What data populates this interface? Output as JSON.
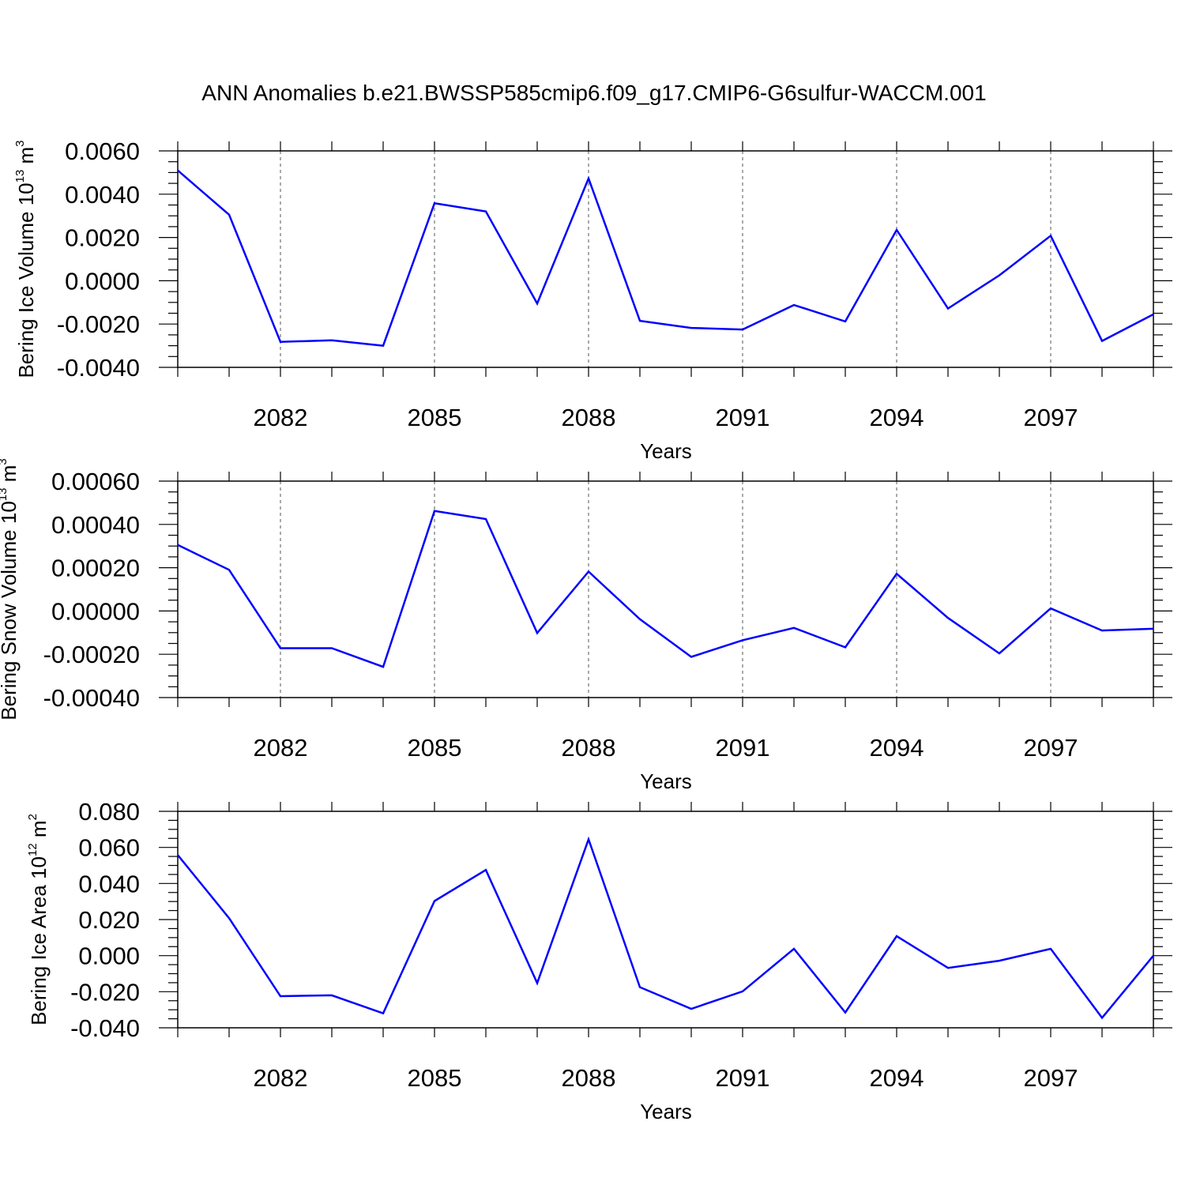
{
  "title": "ANN Anomalies b.e21.BWSSP585cmip6.f09_g17.CMIP6-G6sulfur-WACCM.001",
  "line_color": "#0000ff",
  "chart_data": [
    {
      "type": "line",
      "title": "ANN Anomalies b.e21.BWSSP585cmip6.f09_g17.CMIP6-G6sulfur-WACCM.001",
      "xlabel": "Years",
      "ylabel": {
        "text": "Bering Ice Volume 10",
        "sup": "13",
        "unit": " m",
        "unit_sup": "3"
      },
      "xlim": [
        2080,
        2099
      ],
      "ylim": [
        -0.004,
        0.006
      ],
      "x_ticks": [
        2082,
        2085,
        2088,
        2091,
        2094,
        2097
      ],
      "y_ticks": [
        -0.004,
        -0.002,
        0.0,
        0.002,
        0.004,
        0.006
      ],
      "y_tick_labels": [
        "-0.0040",
        "-0.0020",
        "0.0000",
        "0.0020",
        "0.0040",
        "0.0060"
      ],
      "x": [
        2080,
        2081,
        2082,
        2083,
        2084,
        2085,
        2086,
        2087,
        2088,
        2089,
        2090,
        2091,
        2092,
        2093,
        2094,
        2095,
        2096,
        2097,
        2098,
        2099
      ],
      "values": [
        0.0051,
        0.00305,
        -0.00282,
        -0.00275,
        -0.003,
        0.00358,
        0.0032,
        -0.00105,
        0.00473,
        -0.00185,
        -0.00218,
        -0.00225,
        -0.00112,
        -0.00188,
        0.00235,
        -0.00128,
        0.00025,
        0.00208,
        -0.00278,
        -0.00155
      ],
      "grid": "x-dashed"
    },
    {
      "type": "line",
      "xlabel": "Years",
      "ylabel": {
        "text": "Bering Snow Volume 10",
        "sup": "13",
        "unit": " m",
        "unit_sup": "3"
      },
      "xlim": [
        2080,
        2099
      ],
      "ylim": [
        -0.0004,
        0.0006
      ],
      "x_ticks": [
        2082,
        2085,
        2088,
        2091,
        2094,
        2097
      ],
      "y_ticks": [
        -0.0004,
        -0.0002,
        0.0,
        0.0002,
        0.0004,
        0.0006
      ],
      "y_tick_labels": [
        "-0.00040",
        "-0.00020",
        "0.00000",
        "0.00020",
        "0.00040",
        "0.00060"
      ],
      "x": [
        2080,
        2081,
        2082,
        2083,
        2084,
        2085,
        2086,
        2087,
        2088,
        2089,
        2090,
        2091,
        2092,
        2093,
        2094,
        2095,
        2096,
        2097,
        2098,
        2099
      ],
      "values": [
        0.000305,
        0.00019,
        -0.000172,
        -0.000172,
        -0.000258,
        0.000462,
        0.000425,
        -0.000102,
        0.000182,
        -3.8e-05,
        -0.000212,
        -0.000135,
        -7.8e-05,
        -0.000168,
        0.000172,
        -3.2e-05,
        -0.000196,
        1.2e-05,
        -9e-05,
        -8.2e-05
      ],
      "grid": "x-dashed"
    },
    {
      "type": "line",
      "xlabel": "Years",
      "ylabel": {
        "text": "Bering Ice Area 10",
        "sup": "12",
        "unit": " m",
        "unit_sup": "2"
      },
      "xlim": [
        2080,
        2099
      ],
      "ylim": [
        -0.04,
        0.08
      ],
      "x_ticks": [
        2082,
        2085,
        2088,
        2091,
        2094,
        2097
      ],
      "y_ticks": [
        -0.04,
        -0.02,
        0.0,
        0.02,
        0.04,
        0.06,
        0.08
      ],
      "y_tick_labels": [
        "-0.040",
        "-0.020",
        "0.000",
        "0.020",
        "0.040",
        "0.060",
        "0.080"
      ],
      "x": [
        2080,
        2081,
        2082,
        2083,
        2084,
        2085,
        2086,
        2087,
        2088,
        2089,
        2090,
        2091,
        2092,
        2093,
        2094,
        2095,
        2096,
        2097,
        2098,
        2099
      ],
      "values": [
        0.0558,
        0.0208,
        -0.0225,
        -0.022,
        -0.032,
        0.0303,
        0.0475,
        -0.0152,
        0.0645,
        -0.0175,
        -0.0295,
        -0.0198,
        0.0038,
        -0.0315,
        0.0108,
        -0.0068,
        -0.0028,
        0.0038,
        -0.0345,
        0.0
      ]
    }
  ]
}
